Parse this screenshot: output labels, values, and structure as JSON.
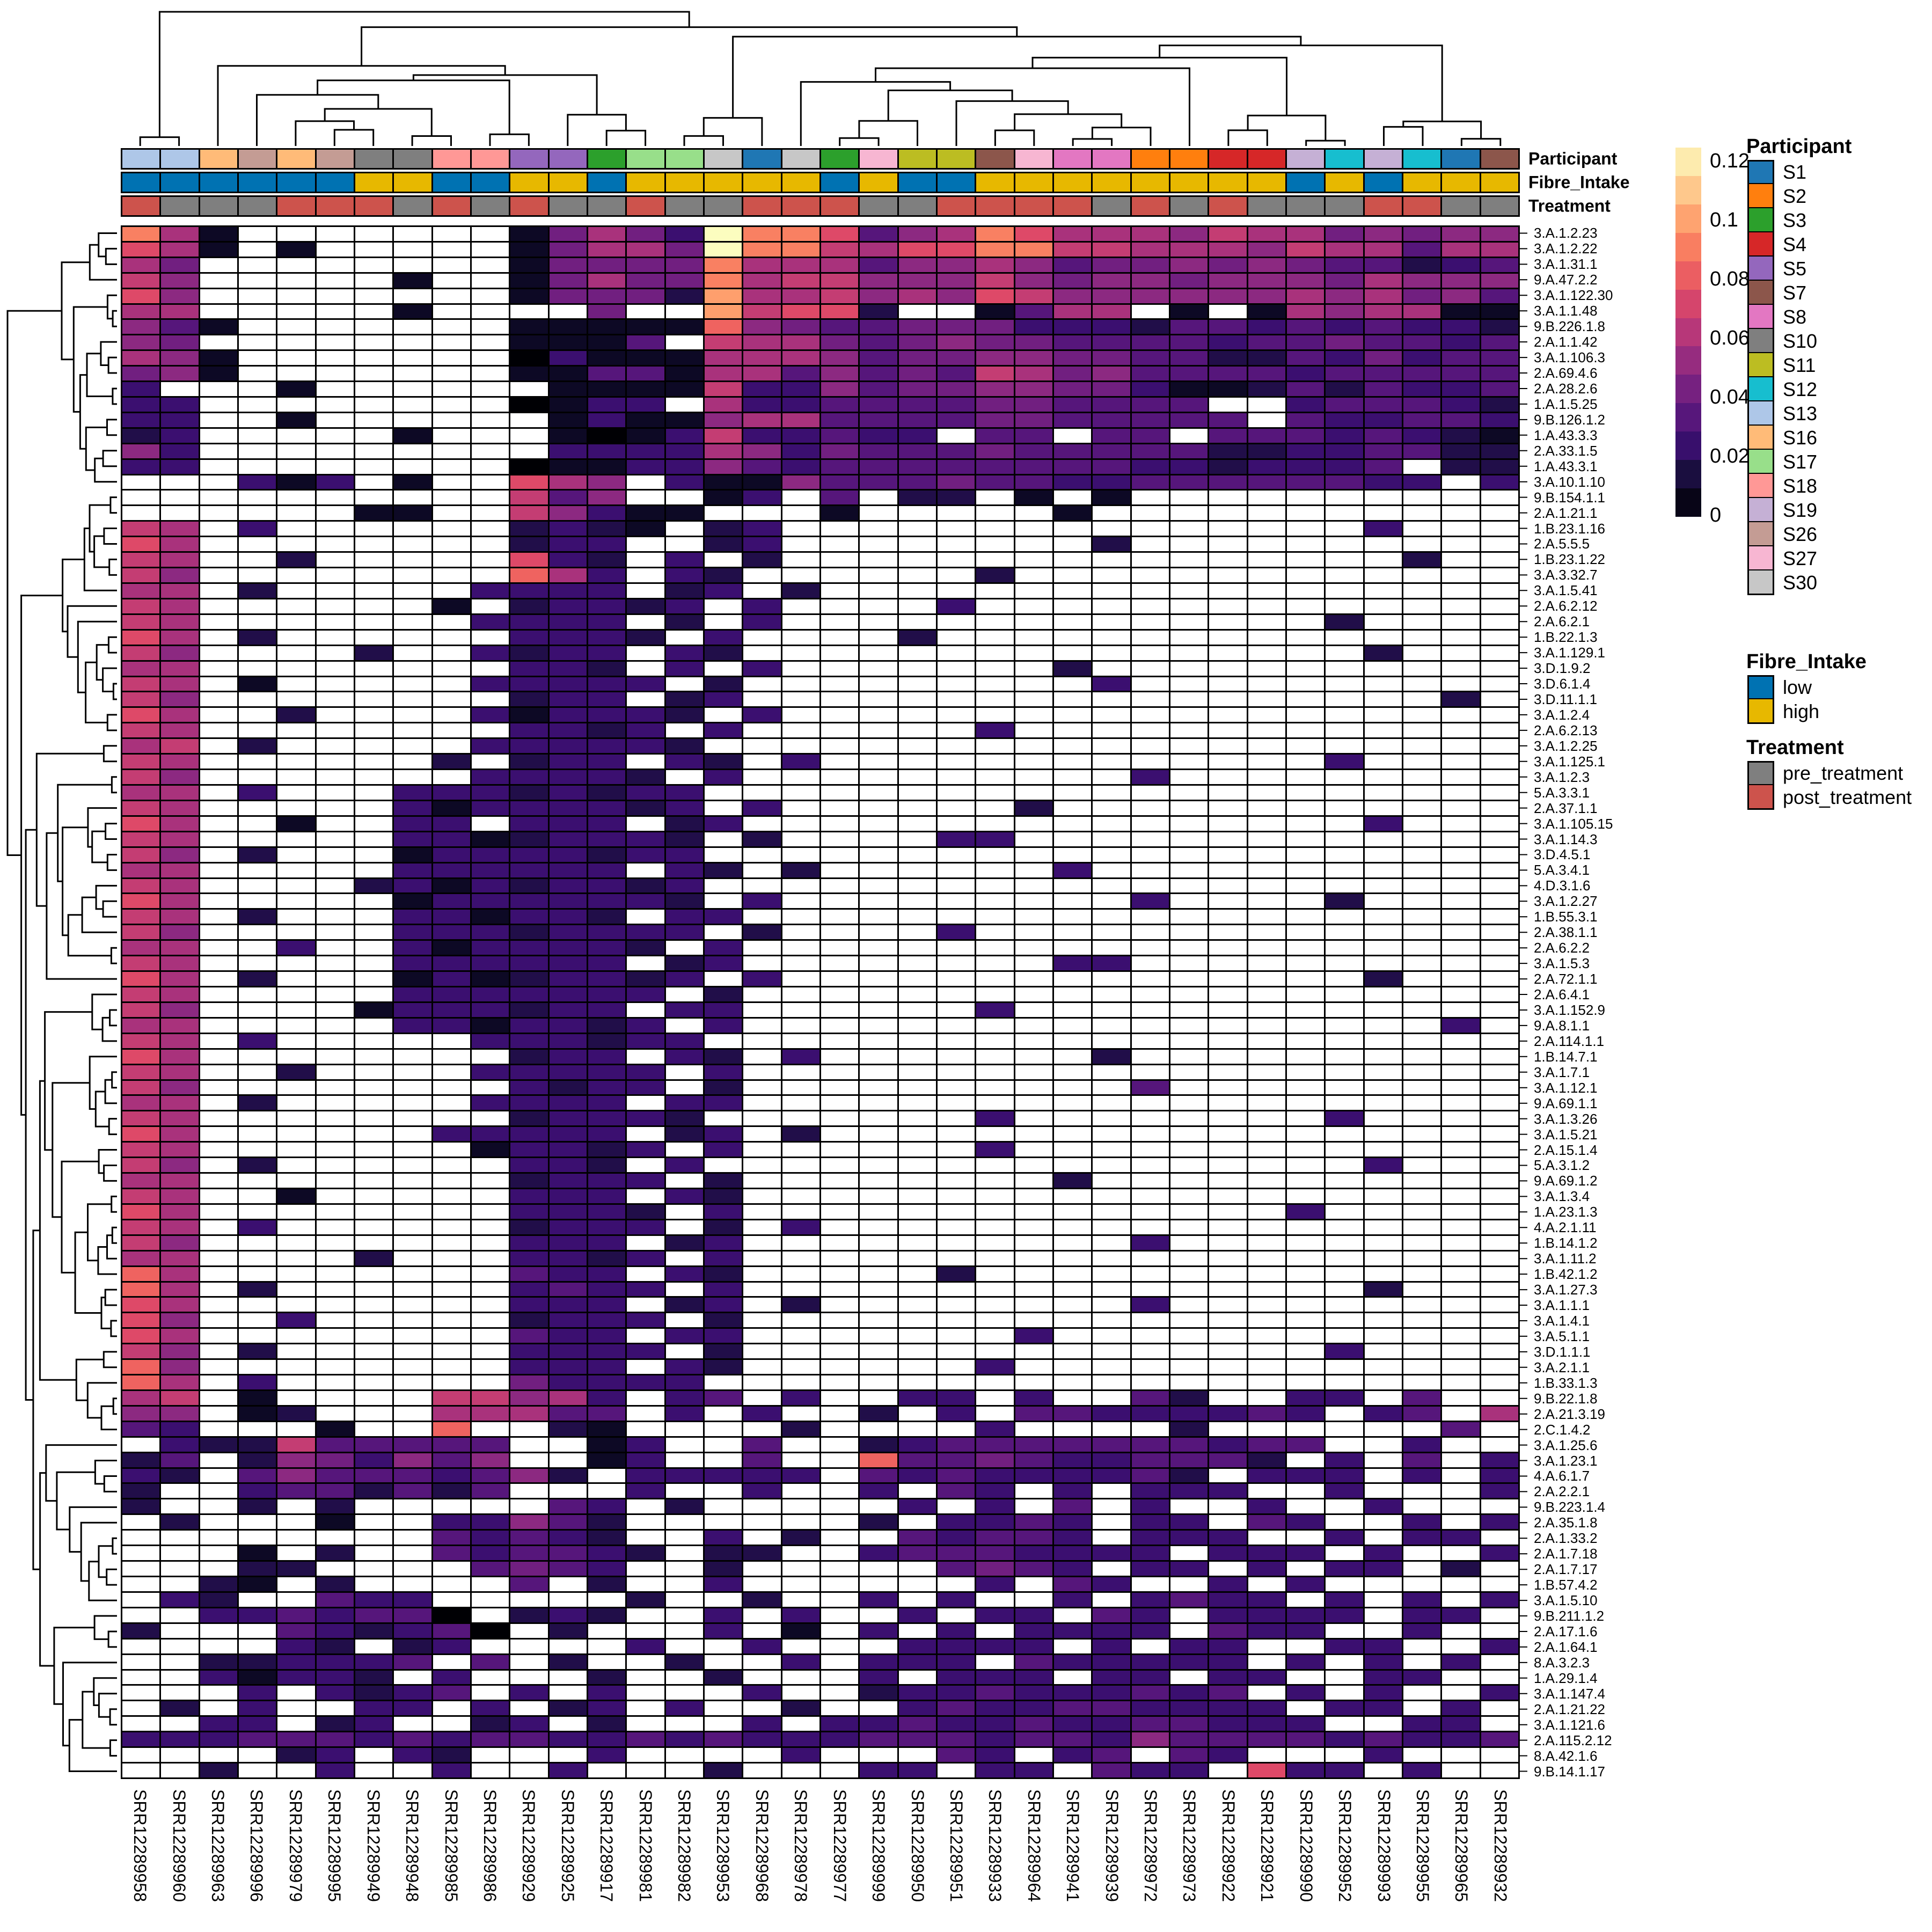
{
  "figure": {
    "background": "#ffffff"
  },
  "colorbar": {
    "ticks": [
      "0.12",
      "0.1",
      "0.08",
      "0.06",
      "0.04",
      "0.02",
      "0"
    ]
  },
  "legends": {
    "participant": {
      "title": "Participant",
      "items": [
        {
          "label": "S1",
          "color": "#1F77B4"
        },
        {
          "label": "S2",
          "color": "#FF7F0E"
        },
        {
          "label": "S3",
          "color": "#2CA02C"
        },
        {
          "label": "S4",
          "color": "#D62728"
        },
        {
          "label": "S5",
          "color": "#9467BD"
        },
        {
          "label": "S7",
          "color": "#8C564B"
        },
        {
          "label": "S8",
          "color": "#E377C2"
        },
        {
          "label": "S10",
          "color": "#7F7F7F"
        },
        {
          "label": "S11",
          "color": "#BCBD22"
        },
        {
          "label": "S12",
          "color": "#17BECF"
        },
        {
          "label": "S13",
          "color": "#AEC7E8"
        },
        {
          "label": "S16",
          "color": "#FFBB78"
        },
        {
          "label": "S17",
          "color": "#98DF8A"
        },
        {
          "label": "S18",
          "color": "#FF9896"
        },
        {
          "label": "S19",
          "color": "#C5B0D5"
        },
        {
          "label": "S26",
          "color": "#C49C94"
        },
        {
          "label": "S27",
          "color": "#F7B6D2"
        },
        {
          "label": "S30",
          "color": "#C7C7C7"
        }
      ]
    },
    "fibre": {
      "title": "Fibre_Intake",
      "items": [
        {
          "label": "low",
          "color": "#0072B2"
        },
        {
          "label": "high",
          "color": "#E7B800"
        }
      ]
    },
    "treatment": {
      "title": "Treatment",
      "items": [
        {
          "label": "pre_treatment",
          "color": "#7F7F7F"
        },
        {
          "label": "post_treatment",
          "color": "#CD534C"
        }
      ]
    }
  },
  "annotations": {
    "rows": [
      {
        "name": "Participant",
        "palette": "participant",
        "values": [
          "S13",
          "S13",
          "S16",
          "S26",
          "S16",
          "S26",
          "S10",
          "S10",
          "S18",
          "S18",
          "S5",
          "S5",
          "S3",
          "S17",
          "S17",
          "S30",
          "S1",
          "S30",
          "S3",
          "S27",
          "S11",
          "S11",
          "S7",
          "S27",
          "S8",
          "S8",
          "S2",
          "S2",
          "S4",
          "S4",
          "S19",
          "S12",
          "S19",
          "S12",
          "S1",
          "S7"
        ]
      },
      {
        "name": "Fibre_Intake",
        "palette": "fibre",
        "values": [
          "low",
          "low",
          "low",
          "low",
          "low",
          "low",
          "high",
          "high",
          "low",
          "low",
          "high",
          "high",
          "low",
          "high",
          "high",
          "high",
          "high",
          "high",
          "low",
          "high",
          "low",
          "low",
          "high",
          "high",
          "high",
          "high",
          "high",
          "high",
          "high",
          "high",
          "low",
          "high",
          "low",
          "high",
          "high",
          "high"
        ]
      },
      {
        "name": "Treatment",
        "palette": "treatment",
        "values": [
          "post_treatment",
          "pre_treatment",
          "pre_treatment",
          "pre_treatment",
          "post_treatment",
          "post_treatment",
          "post_treatment",
          "pre_treatment",
          "post_treatment",
          "pre_treatment",
          "post_treatment",
          "pre_treatment",
          "pre_treatment",
          "post_treatment",
          "pre_treatment",
          "pre_treatment",
          "post_treatment",
          "post_treatment",
          "post_treatment",
          "pre_treatment",
          "pre_treatment",
          "post_treatment",
          "post_treatment",
          "post_treatment",
          "post_treatment",
          "pre_treatment",
          "post_treatment",
          "pre_treatment",
          "post_treatment",
          "pre_treatment",
          "pre_treatment",
          "pre_treatment",
          "post_treatment",
          "post_treatment",
          "pre_treatment",
          "pre_treatment"
        ]
      }
    ],
    "colors": {
      "participant": {
        "S1": "#1F77B4",
        "S2": "#FF7F0E",
        "S3": "#2CA02C",
        "S4": "#D62728",
        "S5": "#9467BD",
        "S7": "#8C564B",
        "S8": "#E377C2",
        "S10": "#7F7F7F",
        "S11": "#BCBD22",
        "S12": "#17BECF",
        "S13": "#AEC7E8",
        "S16": "#FFBB78",
        "S17": "#98DF8A",
        "S18": "#FF9896",
        "S19": "#C5B0D5",
        "S26": "#C49C94",
        "S27": "#F7B6D2",
        "S30": "#C7C7C7"
      },
      "fibre": {
        "low": "#0072B2",
        "high": "#E7B800"
      },
      "treatment": {
        "pre_treatment": "#7F7F7F",
        "post_treatment": "#CD534C"
      }
    }
  },
  "chart_data": {
    "type": "heatmap",
    "title": "",
    "xlabel": "",
    "ylabel": "",
    "legend_position": "right",
    "value_range": [
      0,
      0.12
    ],
    "colormap": "magma",
    "na_color": "#ffffff",
    "colormap_stops": [
      [
        0,
        "#000004"
      ],
      [
        0.1,
        "#140e36"
      ],
      [
        0.2,
        "#3b0f70"
      ],
      [
        0.3,
        "#641a80"
      ],
      [
        0.4,
        "#8c2981"
      ],
      [
        0.5,
        "#b73779"
      ],
      [
        0.6,
        "#de4968"
      ],
      [
        0.7,
        "#f7705c"
      ],
      [
        0.8,
        "#fe9f6d"
      ],
      [
        0.9,
        "#fecf92"
      ],
      [
        1,
        "#fcfdbf"
      ]
    ],
    "encoding": "matrix_levels: 100 rows x 36 cols; each row = 4 concatenated segments (cols 1-10, 11-20, 21-30, 31-36); '.' = absent (white), hex digit 0-f = abundance = digit/15 * 0.12",
    "x_labels": [
      "SRR12289958",
      "SRR12289960",
      "SRR12289963",
      "SRR12289996",
      "SRR12289979",
      "SRR12289995",
      "SRR12289949",
      "SRR12289948",
      "SRR12289985",
      "SRR12289986",
      "SRR12289929",
      "SRR12289925",
      "SRR12289917",
      "SRR12289981",
      "SRR12289982",
      "SRR12289953",
      "SRR12289968",
      "SRR12289978",
      "SRR12289977",
      "SRR12289999",
      "SRR12289950",
      "SRR12289951",
      "SRR12289933",
      "SRR12289964",
      "SRR12289941",
      "SRR12289939",
      "SRR12289972",
      "SRR12289973",
      "SRR12289922",
      "SRR12289921",
      "SRR12289990",
      "SRR12289952",
      "SRR12289993",
      "SRR12289955",
      "SRR12289965",
      "SRR12289932"
    ],
    "y_labels": [
      "3.A.1.2.23",
      "3.A.1.2.22",
      "3.A.1.31.1",
      "9.A.47.2.2",
      "3.A.1.122.30",
      "3.A.1.1.48",
      "9.B.226.1.8",
      "2.A.1.1.42",
      "3.A.1.106.3",
      "2.A.69.4.6",
      "2.A.28.2.6",
      "1.A.1.5.25",
      "9.B.126.1.2",
      "1.A.43.3.3",
      "2.A.33.1.5",
      "1.A.43.3.1",
      "3.A.10.1.10",
      "9.B.154.1.1",
      "2.A.1.21.1",
      "1.B.23.1.16",
      "2.A.5.5.5",
      "1.B.23.1.22",
      "3.A.3.32.7",
      "3.A.1.5.41",
      "2.A.6.2.12",
      "2.A.6.2.1",
      "1.B.22.1.3",
      "3.A.1.129.1",
      "3.D.1.9.2",
      "3.D.6.1.4",
      "3.D.11.1.1",
      "3.A.1.2.4",
      "2.A.6.2.13",
      "3.A.1.2.25",
      "3.A.1.125.1",
      "3.A.1.2.3",
      "5.A.3.3.1",
      "2.A.37.1.1",
      "3.A.1.105.15",
      "3.A.1.14.3",
      "3.D.4.5.1",
      "5.A.3.4.1",
      "4.D.3.1.6",
      "3.A.1.2.27",
      "1.B.55.3.1",
      "2.A.38.1.1",
      "2.A.6.2.2",
      "3.A.1.5.3",
      "2.A.72.1.1",
      "2.A.6.4.1",
      "3.A.1.152.9",
      "9.A.8.1.1",
      "2.A.114.1.1",
      "1.B.14.7.1",
      "3.A.1.7.1",
      "3.A.1.12.1",
      "9.A.69.1.1",
      "3.A.1.3.26",
      "3.A.1.5.21",
      "2.A.15.1.4",
      "5.A.3.1.2",
      "9.A.69.1.2",
      "3.A.1.3.4",
      "1.A.23.1.3",
      "4.A.2.1.11",
      "1.B.14.1.2",
      "3.A.1.11.2",
      "1.B.42.1.2",
      "3.A.1.27.3",
      "3.A.1.1.1",
      "3.A.1.4.1",
      "3.A.5.1.1",
      "3.D.1.1.1",
      "3.A.2.1.1",
      "1.B.33.1.3",
      "9.B.22.1.8",
      "2.A.21.3.19",
      "2.C.1.4.2",
      "3.A.1.25.6",
      "3.A.1.23.1",
      "4.A.6.1.7",
      "2.A.2.2.1",
      "9.B.223.1.4",
      "2.A.35.1.8",
      "2.A.1.33.2",
      "2.A.1.7.18",
      "2.A.1.7.17",
      "1.B.57.4.2",
      "3.A.1.5.10",
      "9.B.211.1.2",
      "2.A.17.1.6",
      "2.A.1.64.1",
      "8.A.3.2.3",
      "1.A.29.1.4",
      "3.A.1.147.4",
      "2.A.1.21.22",
      "3.A.1.121.6",
      "2.A.115.2.12",
      "8.A.42.1.6",
      "9.B.14.1.17"
    ],
    "matrix_levels": [
      [
        "b71.......",
        "15753fbb94",
        "67b9777687",
        "756566"
      ],
      [
        "971.1.....",
        "15775fbb87",
        "99bb887776",
        "877477"
      ],
      [
        "75........",
        "15555b7774",
        "6676455656",
        "544234"
      ],
      [
        "86.....1..",
        "15755b7886",
        "6686566566",
        "657666"
      ],
      [
        "96........",
        "15552c7786",
        "7698666666",
        "767564"
      ],
      [
        "77.....1..",
        "..5..c8992",
        "..1477.1.1",
        "767711"
      ],
      [
        "641.......",
        "11111a6544",
        "5553332443",
        "434332"
      ],
      [
        "65........",
        "1114.87754",
        "5655444434",
        "454434"
      ],
      [
        "761.......",
        "0311177764",
        "5566554422",
        "435344"
      ],
      [
        "561.......",
        "1144177464",
        "5487564444",
        "344444"
      ],
      [
        "3...1.....",
        ".111183364",
        "5566553112",
        "424334"
      ],
      [
        "33........",
        "0133.73344",
        "44554444..",
        "344432"
      ],
      [
        "33..1.....",
        ".131167744",
        "445544444.",
        "433443"
      ],
      [
        "23.....1..",
        ".101383343",
        "3.44.44.44",
        "434321"
      ],
      [
        "63........",
        ".333376354",
        "4454444422",
        "334422"
      ],
      [
        "33........",
        "0113364344",
        "4444443323",
        "334.22"
      ],
      [
        "...313.1..",
        "976.311644",
        "4544334444",
        "4433.3"
      ],
      [
        "..........",
        "846..13.4.",
        "22.1.1....",
        "......"
      ],
      [
        "......11..",
        "86311...1.",
        "....1.....",
        "......"
      ],
      [
        "87.3......",
        "2321.23...",
        "..........",
        "..3..."
      ],
      [
        "97........",
        "233..23...",
        ".....2....",
        "......"
      ],
      [
        "87..2.....",
        "932.3.2...",
        "..........",
        "...2.."
      ],
      [
        "86........",
        "a73.32....",
        "..2.......",
        "......"
      ],
      [
        "77.2.....3",
        "333.23.2..",
        "..........",
        "......"
      ],
      [
        "87......1.",
        "23323.3...",
        ".3........",
        "......"
      ],
      [
        "87.......3",
        "333.2.3...",
        "..........",
        ".2...."
      ],
      [
        "97.2......",
        "3332.3....",
        "2.........",
        "......"
      ],
      [
        "86....2..3",
        "233.32....",
        "..........",
        "..2..."
      ],
      [
        "77........",
        "332.3.3...",
        "....2.....",
        "......"
      ],
      [
        "87.1.....3",
        "3333.2....",
        ".....3....",
        "......"
      ],
      [
        "86........",
        "233.23....",
        "..........",
        "....2."
      ],
      [
        "97..2....3",
        "13332.3...",
        "..........",
        "......"
      ],
      [
        "87........",
        "3323.3....",
        "..3.......",
        "......"
      ],
      [
        "78.2.....3",
        "33332.....",
        "..........",
        "......"
      ],
      [
        "87......2.",
        "233.32.3..",
        "..........",
        ".3...."
      ],
      [
        "86.......3",
        "3332.3....",
        "......3...",
        "......"
      ],
      [
        "77.3...333",
        "23233.....",
        "..........",
        "......"
      ],
      [
        "87.....313",
        "33323.3...",
        "...2......",
        "......"
      ],
      [
        "97..1..33.",
        "333.23....",
        "..........",
        "..3..."
      ],
      [
        "87.....331",
        "23332.2...",
        ".33.......",
        "......"
      ],
      [
        "86.2...133",
        "33233.....",
        "..........",
        "......"
      ],
      [
        "77.....333",
        "333.32.2..",
        "....3.....",
        "......"
      ],
      [
        "87....2313",
        "23323.....",
        "..........",
        "......"
      ],
      [
        "97.....133",
        "33332.3...",
        "......3...",
        ".2...."
      ],
      [
        "87.2...331",
        "332.33....",
        "..........",
        "......"
      ],
      [
        "86.....333",
        "23333.2...",
        ".3........",
        "......"
      ],
      [
        "77..3..313",
        "3332.3....",
        "..........",
        "......"
      ],
      [
        "87.....333",
        "333.23....",
        "....33....",
        "......"
      ],
      [
        "97.2...131",
        "23323.3...",
        "..........",
        "..2..."
      ],
      [
        "87.....333",
        "3333.2....",
        "..........",
        "......"
      ],
      [
        "86....1333",
        "233.33....",
        "..3.......",
        "......"
      ],
      [
        "77.....331",
        "3323.3....",
        "..........",
        "....3."
      ],
      [
        "87.3.....3",
        "33233.....",
        "..........",
        "......"
      ],
      [
        "97........",
        "233.32.3..",
        ".....2....",
        "......"
      ],
      [
        "87..2....3",
        "3333.3....",
        "..........",
        "......"
      ],
      [
        "86........",
        "3233.2....",
        "......4...",
        "......"
      ],
      [
        "77.2.....3",
        "333.33....",
        "..........",
        "......"
      ],
      [
        "87........",
        "23332.....",
        "..3.......",
        ".3...."
      ],
      [
        "97......33",
        "333.23.2..",
        "..........",
        "......"
      ],
      [
        "87.......1",
        "3323.3....",
        "..3.......",
        "......"
      ],
      [
        "86.2......",
        "332.3.....",
        "..........",
        "..3..."
      ],
      [
        "77........",
        "2333.2....",
        "....2.....",
        "......"
      ],
      [
        "87..1.....",
        "333.32....",
        "..........",
        "......"
      ],
      [
        "97........",
        "3332.3....",
        "..........",
        "3....."
      ],
      [
        "87.3......",
        "2333.2.3..",
        "..........",
        "......"
      ],
      [
        "86........",
        "333.23....",
        "......3...",
        "......"
      ],
      [
        "77....2...",
        "3323.3....",
        "..........",
        "......"
      ],
      [
        "a7........",
        "433.32....",
        ".2........",
        "......"
      ],
      [
        "a7.2......",
        "3433.3....",
        "..........",
        "..2..."
      ],
      [
        "97........",
        "333.23.2..",
        "......3...",
        "......"
      ],
      [
        "96..3.....",
        "2333.2....",
        "..........",
        "......"
      ],
      [
        "97........",
        "433.33....",
        "...3......",
        "......"
      ],
      [
        "86.2......",
        "3333.2....",
        "..........",
        ".3...."
      ],
      [
        "a6........",
        "333.32....",
        "..3.......",
        "......"
      ],
      [
        "a7.3......",
        "53333.....",
        "..........",
        "......"
      ],
      [
        "78.1....88",
        "673.34.3..",
        "33.3..42..",
        "33.4.."
      ],
      [
        "66.12...77",
        "744.3.3..2",
        ".3.4433334",
        "3.34.7"
      ],
      [
        "43...1..a.",
        ".21....2..",
        "..3....2..",
        "....4."
      ],
      [
        ".322844444",
        "..13..4..2",
        "3444444434",
        "4..3.."
      ],
      [
        "24.2653646",
        "..13..4..a",
        "4454334442",
        ".3.4.3"
      ],
      [
        "32.4644434",
        "62.33333.4",
        "34333342.3",
        "33.3.3"
      ],
      [
        "2..3442424",
        "...3..3..3",
        ".43.3.333.",
        ".3...3"
      ],
      [
        "2..2.2....",
        ".43.2.....",
        "3.3.4.3..3",
        "..3..."
      ],
      [
        ".2...1..33",
        "642......2",
        ".3343.33.4",
        "3..3.3"
      ],
      [
        "........43",
        "432..3.2..",
        "43443.333.",
        ".3.33."
      ],
      [
        "...1.2..43",
        "4432.22..3",
        "4443333.33",
        "3.3..3"
      ],
      [
        "...22....4",
        "543..2....",
        ".4543.33.3",
        ".33.2."
      ],
      [
        "..21.2....",
        "4.2..3....",
        "..3.43..3.",
        "3....."
      ],
      [
        ".32..433..",
        "...2..2..3",
        ".3..3.3433",
        ".3.3.3"
      ],
      [
        "..3343440.",
        "232..3.3..",
        "3.33.43.33",
        "33.33."
      ],
      [
        "2...432340",
        ".2...3.1.3",
        ".3.3333.43",
        "3..3.."
      ],
      [
        "....32.23.",
        "...3..3...",
        "3333.3.33.",
        ".33..3"
      ],
      [
        "..223334.4",
        ".2..2..3.3",
        "33.433333.",
        "3.3.3."
      ],
      [
        "..31332.3.",
        "..2..2...3",
        ".333.33.33",
        "..33.."
      ],
      [
        "...3.3234.",
        "3.3...3..2",
        "334333434.",
        "3.3..3"
      ],
      [
        ".2.3..33.3",
        ".23.3..2..",
        "3433443333",
        ".33.3."
      ],
      [
        "..33.23..2",
        "3.2...3.33",
        "4334334433",
        "3..33."
      ],
      [
        "3334443434",
        "4334343334",
        "4434436444",
        "434334"
      ],
      [
        "....23.32.",
        "..3....3..",
        ".43.34.43.",
        "..3..."
      ],
      [
        "..2..3..3.",
        ".3...2...3",
        "3.33.433.9",
        "33.3.."
      ]
    ]
  }
}
